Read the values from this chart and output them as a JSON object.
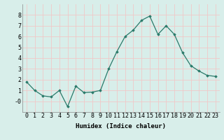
{
  "x": [
    0,
    1,
    2,
    3,
    4,
    5,
    6,
    7,
    8,
    9,
    10,
    11,
    12,
    13,
    14,
    15,
    16,
    17,
    18,
    19,
    20,
    21,
    22,
    23
  ],
  "y": [
    1.8,
    1.0,
    0.5,
    0.4,
    1.0,
    -0.5,
    1.4,
    0.8,
    0.85,
    1.0,
    3.0,
    4.6,
    6.0,
    6.6,
    7.5,
    7.9,
    6.2,
    7.0,
    6.2,
    4.5,
    3.3,
    2.8,
    2.4,
    2.3
  ],
  "line_color": "#2a7a6a",
  "marker": "D",
  "marker_size": 1.8,
  "line_width": 0.9,
  "bg_color": "#d8eeea",
  "grid_color_major": "#f0c8c8",
  "grid_color_minor": "#e8e0e0",
  "xlabel": "Humidex (Indice chaleur)",
  "xlabel_fontsize": 6.5,
  "tick_fontsize": 6.0,
  "ylim": [
    -1.0,
    9.0
  ],
  "yticks": [
    0,
    1,
    2,
    3,
    4,
    5,
    6,
    7,
    8
  ],
  "ytick_labels": [
    "-0",
    "1",
    "2",
    "3",
    "4",
    "5",
    "6",
    "7",
    "8"
  ],
  "xticks": [
    0,
    1,
    2,
    3,
    4,
    5,
    6,
    7,
    8,
    9,
    10,
    11,
    12,
    13,
    14,
    15,
    16,
    17,
    18,
    19,
    20,
    21,
    22,
    23
  ]
}
